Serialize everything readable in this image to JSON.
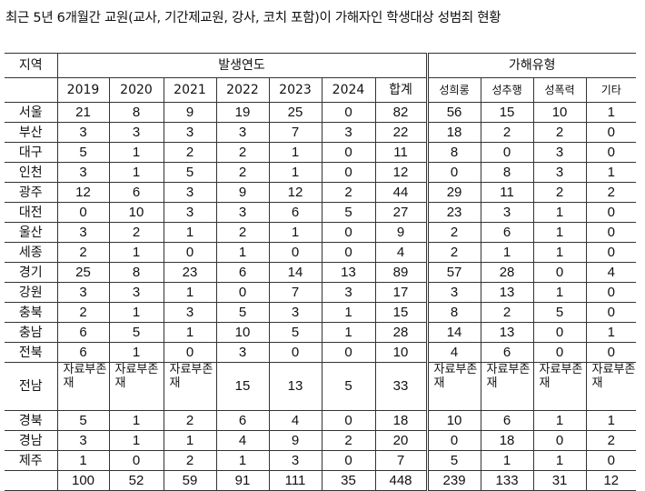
{
  "title": "최근 5년 6개월간 교원(교사, 기간제교원, 강사, 코치 포함)이 가해자인 학생대상 성범죄 현황",
  "header": {
    "region": "지역",
    "year_group": "발생연도",
    "type_group": "가해유형",
    "years": [
      "2019",
      "2020",
      "2021",
      "2022",
      "2023",
      "2024"
    ],
    "total": "합계",
    "types": [
      "성희롱",
      "성추행",
      "성폭력",
      "기타"
    ]
  },
  "rows": [
    {
      "region": "서울",
      "values": [
        "21",
        "8",
        "9",
        "19",
        "25",
        "0",
        "82",
        "56",
        "15",
        "10",
        "1"
      ]
    },
    {
      "region": "부산",
      "values": [
        "3",
        "3",
        "3",
        "3",
        "7",
        "3",
        "22",
        "18",
        "2",
        "2",
        "0"
      ]
    },
    {
      "region": "대구",
      "values": [
        "5",
        "1",
        "2",
        "2",
        "1",
        "0",
        "11",
        "8",
        "0",
        "3",
        "0"
      ]
    },
    {
      "region": "인천",
      "values": [
        "3",
        "1",
        "5",
        "2",
        "1",
        "0",
        "12",
        "0",
        "8",
        "3",
        "1"
      ]
    },
    {
      "region": "광주",
      "values": [
        "12",
        "6",
        "3",
        "9",
        "12",
        "2",
        "44",
        "29",
        "11",
        "2",
        "2"
      ]
    },
    {
      "region": "대전",
      "values": [
        "0",
        "10",
        "3",
        "3",
        "6",
        "5",
        "27",
        "23",
        "3",
        "1",
        "0"
      ]
    },
    {
      "region": "울산",
      "values": [
        "3",
        "2",
        "1",
        "2",
        "1",
        "0",
        "9",
        "2",
        "6",
        "1",
        "0"
      ]
    },
    {
      "region": "세종",
      "values": [
        "2",
        "1",
        "0",
        "1",
        "0",
        "0",
        "4",
        "2",
        "1",
        "1",
        "0"
      ]
    },
    {
      "region": "경기",
      "values": [
        "25",
        "8",
        "23",
        "6",
        "14",
        "13",
        "89",
        "57",
        "28",
        "0",
        "4"
      ]
    },
    {
      "region": "강원",
      "values": [
        "3",
        "3",
        "1",
        "0",
        "7",
        "3",
        "17",
        "3",
        "13",
        "1",
        "0"
      ]
    },
    {
      "region": "충북",
      "values": [
        "2",
        "1",
        "3",
        "5",
        "3",
        "1",
        "15",
        "8",
        "2",
        "5",
        "0"
      ]
    },
    {
      "region": "충남",
      "values": [
        "6",
        "5",
        "1",
        "10",
        "5",
        "1",
        "28",
        "14",
        "13",
        "0",
        "1"
      ]
    },
    {
      "region": "전북",
      "values": [
        "6",
        "1",
        "0",
        "3",
        "0",
        "0",
        "10",
        "4",
        "6",
        "0",
        "0"
      ]
    },
    {
      "region": "전남",
      "values": [
        "자료부존재",
        "자료부존재",
        "자료부존재",
        "15",
        "13",
        "5",
        "33",
        "자료부존재",
        "자료부존재",
        "자료부존재",
        "자료부존재"
      ]
    },
    {
      "region": "경북",
      "values": [
        "5",
        "1",
        "2",
        "6",
        "4",
        "0",
        "18",
        "10",
        "6",
        "1",
        "1"
      ]
    },
    {
      "region": "경남",
      "values": [
        "3",
        "1",
        "1",
        "4",
        "9",
        "2",
        "20",
        "0",
        "18",
        "0",
        "2"
      ]
    },
    {
      "region": "제주",
      "values": [
        "1",
        "0",
        "2",
        "1",
        "3",
        "0",
        "7",
        "5",
        "1",
        "1",
        "0"
      ]
    }
  ],
  "totals": {
    "region": "",
    "values": [
      "100",
      "52",
      "59",
      "91",
      "111",
      "35",
      "448",
      "239",
      "133",
      "31",
      "12"
    ]
  }
}
